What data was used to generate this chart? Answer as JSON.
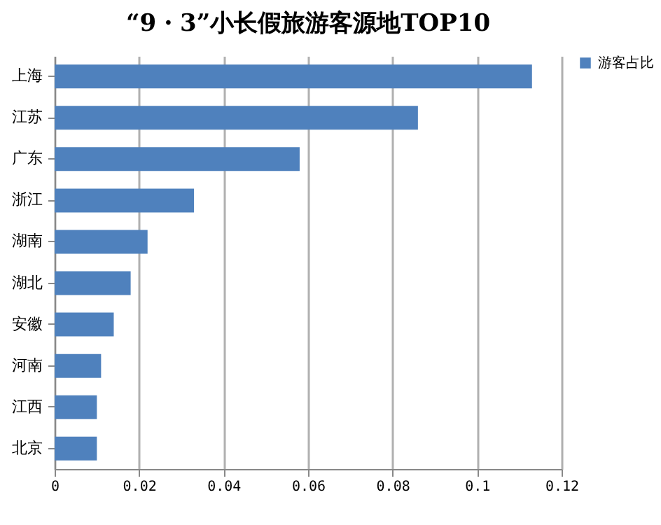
{
  "chart_data": {
    "type": "bar",
    "orientation": "horizontal",
    "title": "“9・3”小长假旅游客源地TOP10",
    "categories": [
      "上海",
      "江苏",
      "广东",
      "浙江",
      "湖南",
      "湖北",
      "安徽",
      "河南",
      "江西",
      "北京"
    ],
    "series": [
      {
        "name": "游客占比",
        "color": "#4f81bd",
        "values": [
          0.113,
          0.086,
          0.058,
          0.033,
          0.022,
          0.018,
          0.014,
          0.011,
          0.01,
          0.01
        ]
      }
    ],
    "xlim": [
      0,
      0.12
    ],
    "xticks": [
      0,
      0.02,
      0.04,
      0.06,
      0.08,
      0.1,
      0.12
    ],
    "grid": "x",
    "legend": "right"
  }
}
